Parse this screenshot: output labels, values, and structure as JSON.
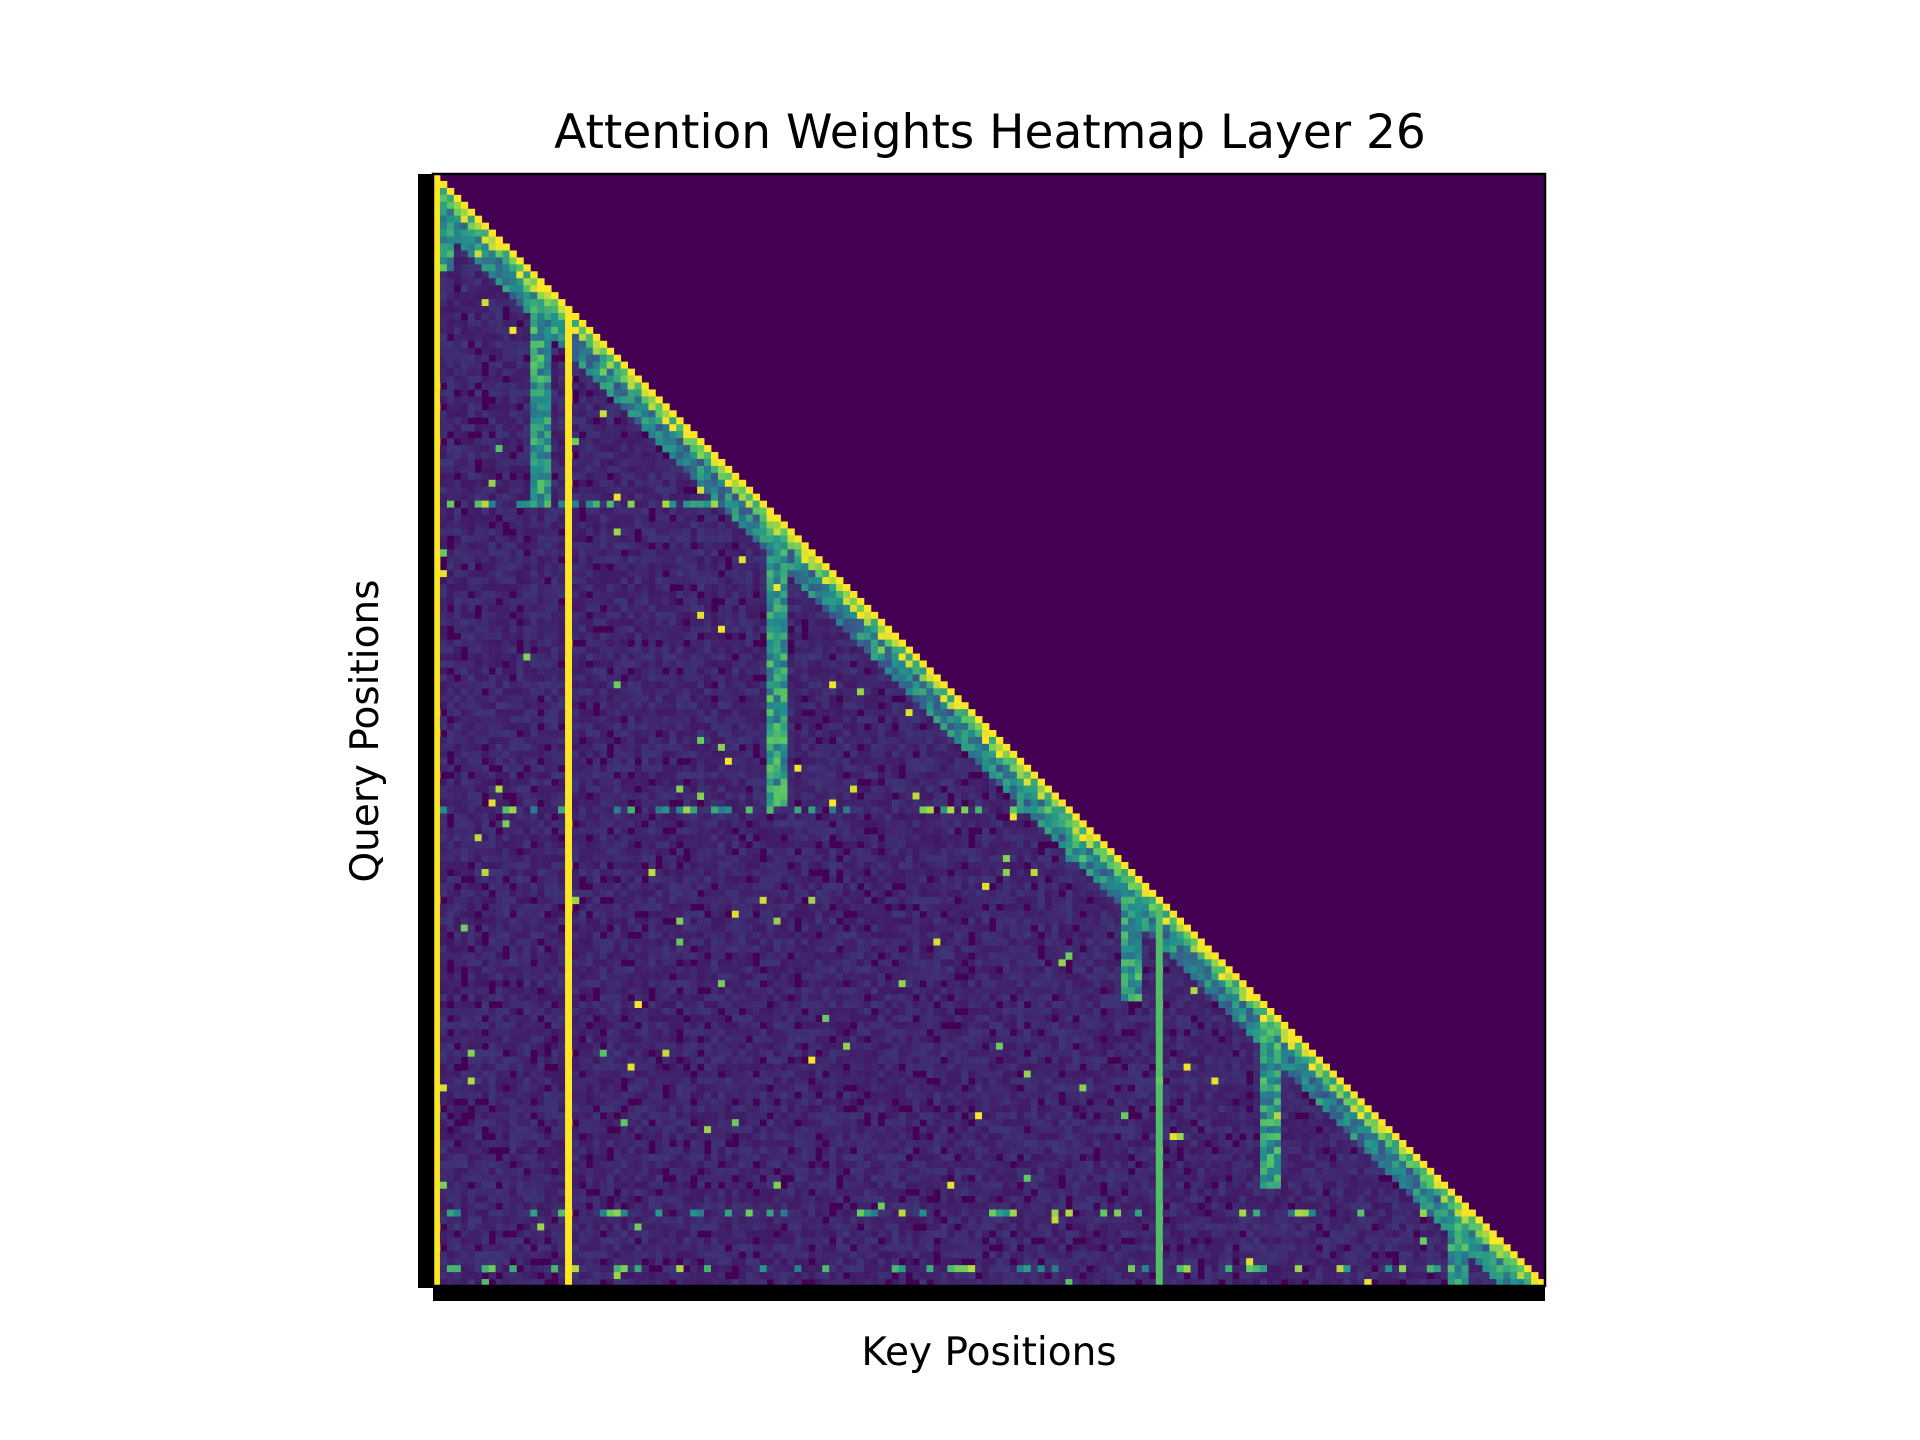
{
  "chart_data": {
    "type": "heatmap",
    "title": "Attention Weights Heatmap Layer 26",
    "xlabel": "Key Positions",
    "ylabel": "Query Positions",
    "mask": "causal-lower-triangular",
    "colormap": "viridis",
    "grid": false,
    "legend": "none",
    "masked_region_value": 0,
    "diagonal_weight": 1,
    "attention_sink_columns": [
      {
        "key_fraction": 0.0,
        "weight": 1
      },
      {
        "key_fraction": 0.117,
        "weight": 1
      },
      {
        "key_fraction": 0.652,
        "weight": 0.7
      }
    ],
    "secondary_blocks_start_fraction": [
      0.0,
      0.09,
      0.3,
      0.57,
      0.62,
      0.75,
      0.92
    ],
    "highlighted_query_rows_fraction": [
      0.297,
      0.571,
      0.94,
      0.985
    ]
  },
  "colors": {
    "viridis_low": "#440154",
    "viridis_mid": "#21918c",
    "viridis_high": "#fde725",
    "frame": "#000000"
  }
}
